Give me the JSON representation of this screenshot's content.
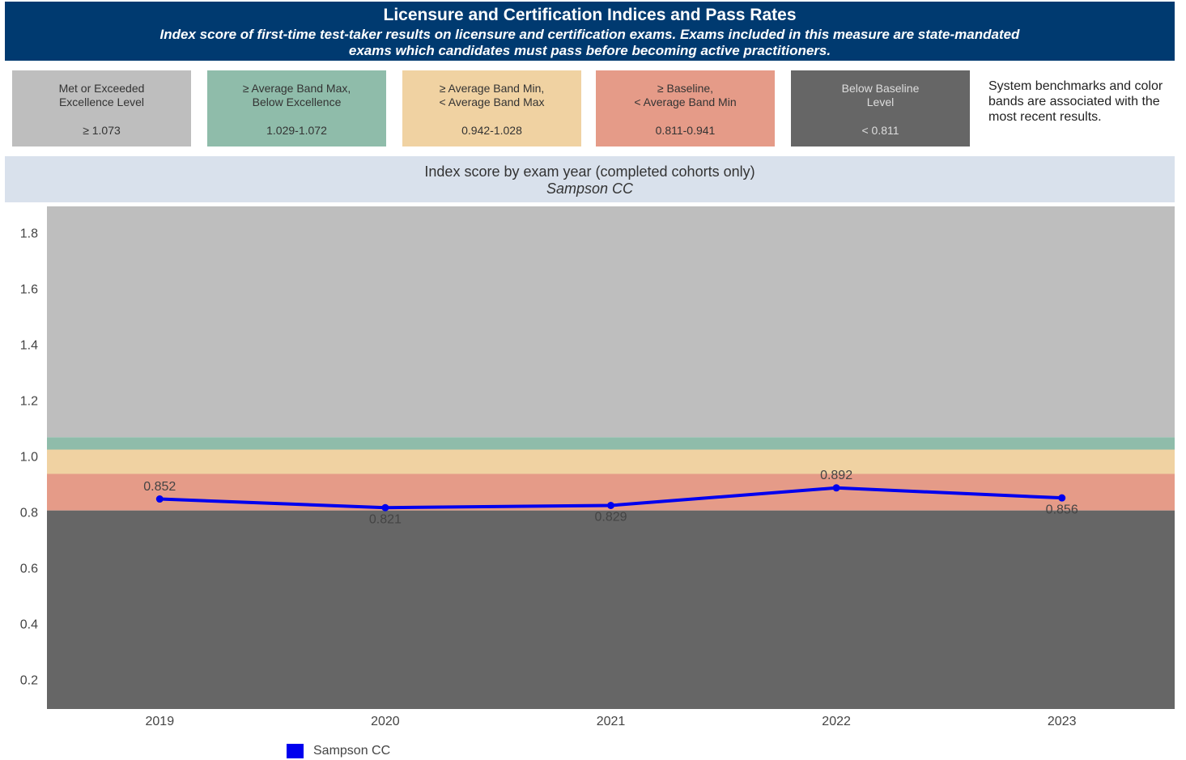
{
  "header": {
    "title": "Licensure and Certification Indices and Pass Rates",
    "subtitle": "Index score of first-time test-taker results on licensure and certification exams. Exams included in this measure are state-mandated exams which candidates must pass before becoming active practitioners."
  },
  "bands": [
    {
      "label": [
        "Met or Exceeded",
        "Excellence Level"
      ],
      "range": "≥ 1.073",
      "color": "#bebebe"
    },
    {
      "label": [
        "≥ Average Band Max,",
        "Below Excellence"
      ],
      "range": "1.029-1.072",
      "color": "#8fbcaa"
    },
    {
      "label": [
        "≥ Average Band Min,",
        "< Average Band Max"
      ],
      "range": "0.942-1.028",
      "color": "#f0d2a2"
    },
    {
      "label": [
        "≥ Baseline,",
        "< Average Band Min"
      ],
      "range": "0.811-0.941",
      "color": "#e59b88"
    },
    {
      "label": [
        "Below Baseline",
        "Level"
      ],
      "range": "< 0.811",
      "color": "#666666"
    }
  ],
  "note": "System benchmarks and color bands are associated with the most recent results.",
  "chart_data": {
    "type": "line",
    "title": "Index score by exam year (completed cohorts only)",
    "subtitle": "Sampson CC",
    "categories": [
      "2019",
      "2020",
      "2021",
      "2022",
      "2023"
    ],
    "series": [
      {
        "name": "Sampson CC",
        "color": "#0000ee",
        "values": [
          0.852,
          0.821,
          0.829,
          0.892,
          0.856
        ]
      }
    ],
    "thresholds": [
      1.073,
      1.029,
      0.942,
      0.811
    ],
    "ylim": [
      0.1,
      1.9
    ],
    "yticks": [
      0.2,
      0.4,
      0.6,
      0.8,
      {
        "value": 1,
        "label": "1.0"
      },
      1.2,
      1.4,
      1.6,
      1.8
    ]
  }
}
